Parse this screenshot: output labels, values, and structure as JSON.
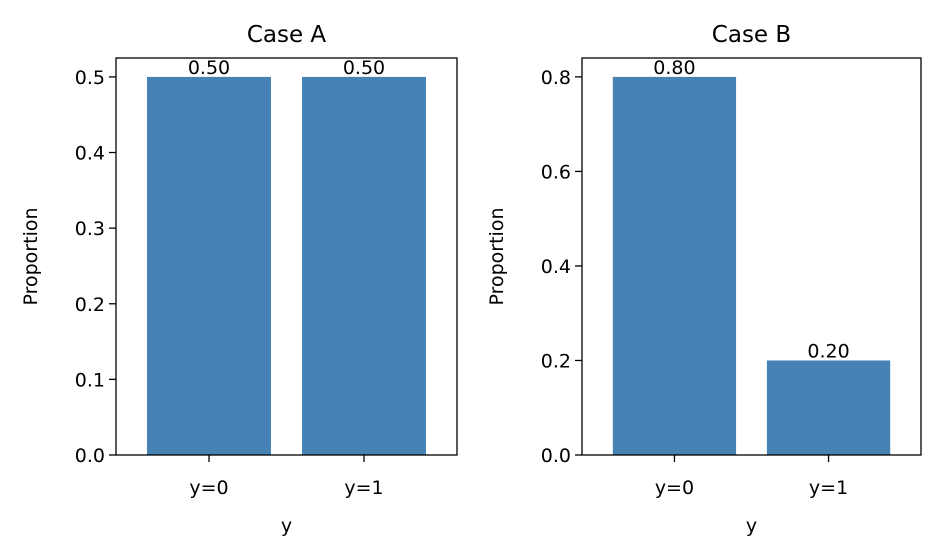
{
  "chart_data": [
    {
      "type": "bar",
      "title": "Case A",
      "xlabel": "y",
      "ylabel": "Proportion",
      "categories": [
        "y=0",
        "y=1"
      ],
      "values": [
        0.5,
        0.5
      ],
      "value_labels": [
        "0.50",
        "0.50"
      ],
      "ylim": [
        0,
        0.525
      ],
      "yticks": [
        0.0,
        0.1,
        0.2,
        0.3,
        0.4,
        0.5
      ],
      "ytick_labels": [
        "0.0",
        "0.1",
        "0.2",
        "0.3",
        "0.4",
        "0.5"
      ],
      "bar_color": "#4682b4",
      "grid": false,
      "legend": "none"
    },
    {
      "type": "bar",
      "title": "Case B",
      "xlabel": "y",
      "ylabel": "Proportion",
      "categories": [
        "y=0",
        "y=1"
      ],
      "values": [
        0.8,
        0.2
      ],
      "value_labels": [
        "0.80",
        "0.20"
      ],
      "ylim": [
        0,
        0.84
      ],
      "yticks": [
        0.0,
        0.2,
        0.4,
        0.6,
        0.8
      ],
      "ytick_labels": [
        "0.0",
        "0.2",
        "0.4",
        "0.6",
        "0.8"
      ],
      "bar_color": "#4682b4",
      "grid": false,
      "legend": "none"
    }
  ]
}
